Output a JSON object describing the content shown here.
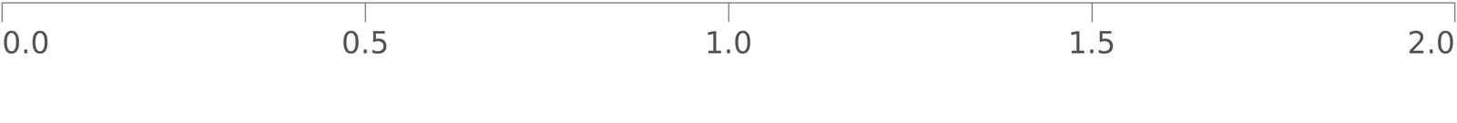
{
  "chart_data": {
    "type": "axis",
    "xlim": [
      0,
      2
    ],
    "xticks": [
      {
        "value": 0,
        "label": "0.0"
      },
      0.5,
      {
        "value": 1,
        "label": "1.0"
      },
      1.5,
      {
        "value": 2,
        "label": "2.0"
      }
    ]
  }
}
